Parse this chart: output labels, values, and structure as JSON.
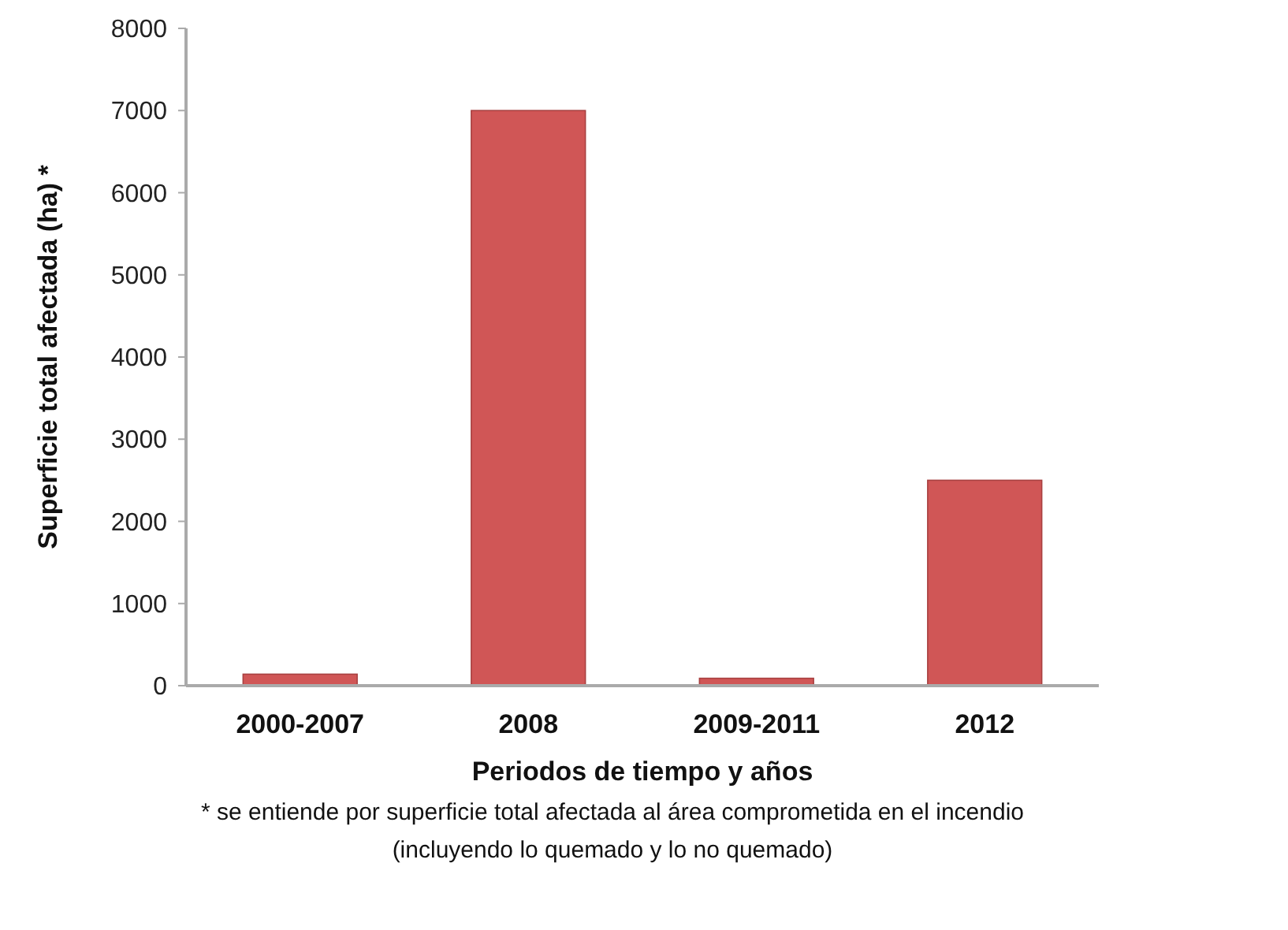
{
  "chart_data": {
    "type": "bar",
    "ylabel": "Superficie total afectada (ha) *",
    "xlabel": "Periodos de tiempo y años",
    "categories": [
      "2000-2007",
      "2008",
      "2009-2011",
      "2012"
    ],
    "values": [
      140,
      7000,
      90,
      2500
    ],
    "color": "#d05656",
    "ylim": [
      0,
      8000
    ],
    "yticks": [
      0,
      1000,
      2000,
      3000,
      4000,
      5000,
      6000,
      7000,
      8000
    ],
    "grid": false,
    "annotations": [
      "* se entiende por superficie total afectada al área comprometida en el incendio",
      "(incluyendo lo quemado y lo no quemado)"
    ]
  }
}
